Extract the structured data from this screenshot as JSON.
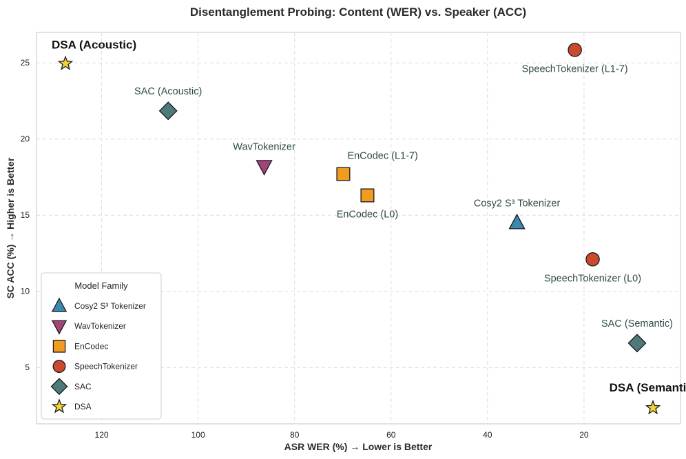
{
  "chart_data": {
    "type": "scatter",
    "title": "Disentanglement Probing: Content (WER) vs. Speaker (ACC)",
    "xlabel": "ASR WER (%) → Lower is Better",
    "ylabel": "SC ACC (%) → Higher is Better",
    "xlim": [
      133.5,
      0
    ],
    "ylim": [
      1.3,
      27.0
    ],
    "x_inverted": true,
    "xticks": [
      120,
      100,
      80,
      60,
      40,
      20
    ],
    "yticks": [
      5,
      10,
      15,
      20,
      25
    ],
    "grid": true,
    "legend": {
      "title": "Model Family",
      "position": "lower-left",
      "entries": [
        {
          "label": "Cosy2 S³ Tokenizer",
          "marker": "triangle-up",
          "color": "#3a8ab0"
        },
        {
          "label": "WavTokenizer",
          "marker": "triangle-down",
          "color": "#a3437a"
        },
        {
          "label": "EnCodec",
          "marker": "square",
          "color": "#f19b20"
        },
        {
          "label": "SpeechTokenizer",
          "marker": "circle",
          "color": "#c94a2e"
        },
        {
          "label": "SAC",
          "marker": "diamond",
          "color": "#4e7a7a"
        },
        {
          "label": "DSA",
          "marker": "star",
          "color": "#f2d234"
        }
      ]
    },
    "points": [
      {
        "label": "DSA (Acoustic)",
        "family": "DSA",
        "marker": "star",
        "color": "#f2d234",
        "x": 127.5,
        "y": 24.95,
        "bold": true,
        "label_pos": "above-left"
      },
      {
        "label": "SAC (Acoustic)",
        "family": "SAC",
        "marker": "diamond",
        "color": "#4e7a7a",
        "x": 106.2,
        "y": 21.85,
        "label_pos": "above"
      },
      {
        "label": "WavTokenizer",
        "family": "WavTokenizer",
        "marker": "triangle-down",
        "color": "#a3437a",
        "x": 86.3,
        "y": 18.2,
        "label_pos": "above"
      },
      {
        "label": "EnCodec (L1-7)",
        "family": "EnCodec",
        "marker": "square",
        "color": "#f19b20",
        "x": 69.9,
        "y": 17.7,
        "label_pos": "above-right"
      },
      {
        "label": "EnCodec (L0)",
        "family": "EnCodec",
        "marker": "square",
        "color": "#f19b20",
        "x": 64.9,
        "y": 16.3,
        "label_pos": "below"
      },
      {
        "label": "Cosy2 S³ Tokenizer",
        "family": "Cosy2 S³ Tokenizer",
        "marker": "triangle-up",
        "color": "#3a8ab0",
        "x": 33.9,
        "y": 14.5,
        "label_pos": "above"
      },
      {
        "label": "SpeechTokenizer (L1-7)",
        "family": "SpeechTokenizer",
        "marker": "circle",
        "color": "#c94a2e",
        "x": 21.9,
        "y": 25.85,
        "label_pos": "below"
      },
      {
        "label": "SpeechTokenizer (L0)",
        "family": "SpeechTokenizer",
        "marker": "circle",
        "color": "#c94a2e",
        "x": 18.2,
        "y": 12.1,
        "label_pos": "below"
      },
      {
        "label": "SAC (Semantic)",
        "family": "SAC",
        "marker": "diamond",
        "color": "#4e7a7a",
        "x": 9.0,
        "y": 6.6,
        "label_pos": "above"
      },
      {
        "label": "DSA (Semantic)",
        "family": "DSA",
        "marker": "star",
        "color": "#f2d234",
        "x": 5.7,
        "y": 2.35,
        "bold": true,
        "label_pos": "above"
      }
    ]
  }
}
